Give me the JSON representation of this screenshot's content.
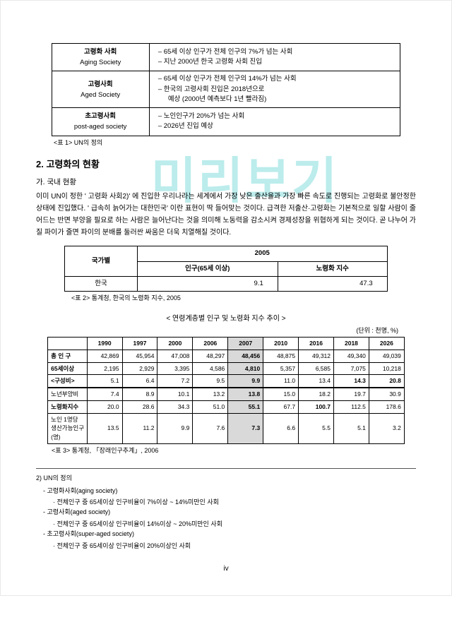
{
  "watermark": "미리보기",
  "table1": {
    "caption": "<표 1> UN의 정의",
    "rows": [
      {
        "ko": "고령화 사회",
        "en": "Aging Society",
        "b1": "65세 이상 인구가 전체 인구의 7%가 넘는 사회",
        "b2": "지난 2000년 한국 고령화 사회 진입"
      },
      {
        "ko": "고령사회",
        "en": "Aged Society",
        "b1": "65세 이상 인구가 전체 인구의 14%가 넘는 사회",
        "b2": "한국의 고령사회 진입은 2018년으로",
        "b3": "예상 (2000년 예측보다 1년 빨라짐)"
      },
      {
        "ko": "초고령사회",
        "en": "post-aged society",
        "b1": "노인인구가 20%가 넘는 사회",
        "b2": "2026년 진입 예상"
      }
    ]
  },
  "section2": {
    "num_title": "2. 고령화의 현황",
    "sub": "가. 국내 현황",
    "para": "이미 UN이 정한 ' 고령화 사회2)' 에 진입한 우리나라는 세계에서 가장 낮은 출산율과 가장 빠른 속도로 진행되는 고령화로 불안정한 상태에 진입했다. ' 급속히 늙어가는 대한민국' 이란 표현이 딱 들어맞는 것이다. 급격한 저출산·고령화는 기본적으로 일할 사람이 줄어드는 반면 부양을 필요로 하는 사람은 늘어난다는 것을 의미해 노동력을 감소시켜 경제성장을 위협하게 되는 것이다. 곧 나누어 가질 파이가 줄면 파이의 분배를 둘러싼 싸움은 더욱 치열해질 것이다."
  },
  "table2": {
    "h_country": "국가별",
    "h_year": "2005",
    "h_pop": "인구(65세 이상)",
    "h_idx": "노령화 지수",
    "row_country": "한국",
    "row_pop": "9.1",
    "row_idx": "47.3",
    "caption": "<표 2> 통계청, 한국의 노령화 지수, 2005"
  },
  "table3": {
    "title": "< 연령계층별 인구 및 노령화 지수 추이 >",
    "unit": "(단위 : 천명, %)",
    "years": [
      "1990",
      "1997",
      "2000",
      "2006",
      "2007",
      "2010",
      "2016",
      "2018",
      "2026"
    ],
    "rows": [
      {
        "name": "총 인 구",
        "v": [
          "42,869",
          "45,954",
          "47,008",
          "48,297",
          "48,456",
          "48,875",
          "49,312",
          "49,340",
          "49,039"
        ]
      },
      {
        "name": "65세이상",
        "v": [
          "2,195",
          "2,929",
          "3,395",
          "4,586",
          "4,810",
          "5,357",
          "6,585",
          "7,075",
          "10,218"
        ]
      },
      {
        "name": "<구성비>",
        "v": [
          "5.1",
          "6.4",
          "7.2",
          "9.5",
          "9.9",
          "11.0",
          "13.4",
          "14.3",
          "20.8"
        ]
      },
      {
        "name": "노년부양비",
        "v": [
          "7.4",
          "8.9",
          "10.1",
          "13.2",
          "13.8",
          "15.0",
          "18.2",
          "19.7",
          "30.9"
        ]
      },
      {
        "name": "노령화지수",
        "v": [
          "20.0",
          "28.6",
          "34.3",
          "51.0",
          "55.1",
          "67.7",
          "100.7",
          "112.5",
          "178.6"
        ]
      },
      {
        "name": "노인 1명당\n생산가능인구\n(명)",
        "v": [
          "13.5",
          "11.2",
          "9.9",
          "7.6",
          "7.3",
          "6.6",
          "5.5",
          "5.1",
          "3.2"
        ]
      }
    ],
    "caption": "<표 3> 통계청, 「장래인구추계」, 2006",
    "hl_col": 4,
    "bold_cols": [
      7,
      8
    ]
  },
  "footnotes": {
    "title": "2) UN의 정의",
    "items": [
      {
        "main": "- 고령화사회(aging society)",
        "sub": "· 전체인구 중 65세이상 인구비율이 7%이상 ~ 14%미만인 사회"
      },
      {
        "main": "- 고령사회(aged society)",
        "sub": "· 전체인구 중 65세이상 인구비율이 14%이상 ~ 20%미만인 사회"
      },
      {
        "main": "- 초고령사회(super-aged society)",
        "sub": "· 전체인구 중 65세이상 인구비율이 20%이상인 사회"
      }
    ]
  },
  "pagenum": "iv",
  "colors": {
    "watermark": "#40c8c8",
    "hl": "#d9d9d9"
  }
}
